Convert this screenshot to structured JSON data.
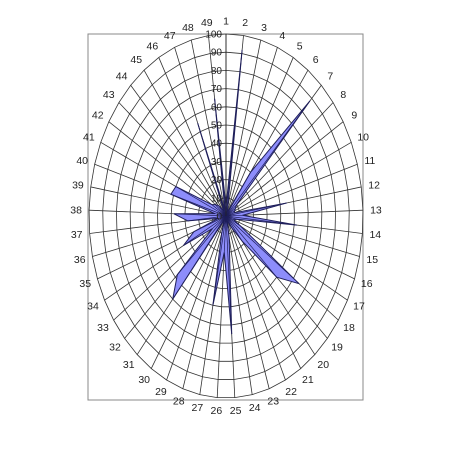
{
  "chart_data": {
    "type": "radar-area",
    "title": "",
    "categories": [
      "1",
      "2",
      "3",
      "4",
      "5",
      "6",
      "7",
      "8",
      "9",
      "10",
      "11",
      "12",
      "13",
      "14",
      "15",
      "16",
      "17",
      "18",
      "19",
      "20",
      "21",
      "22",
      "23",
      "24",
      "25",
      "26",
      "27",
      "28",
      "29",
      "30",
      "31",
      "32",
      "33",
      "34",
      "35",
      "36",
      "37",
      "38",
      "39",
      "40",
      "41",
      "42",
      "43",
      "44",
      "45",
      "46",
      "47",
      "48",
      "49"
    ],
    "ring_labels": [
      "0",
      "10",
      "20",
      "30",
      "40",
      "50",
      "60",
      "70",
      "80",
      "90",
      "100"
    ],
    "rlim": [
      0,
      100
    ],
    "grid": true,
    "legend": "none",
    "series": [
      {
        "fill": "#8d8dfb",
        "stroke": "#1f1f5a",
        "values": [
          5,
          92,
          5,
          3,
          3,
          30,
          88,
          10,
          8,
          7,
          6,
          45,
          12,
          52,
          8,
          6,
          12,
          65,
          50,
          18,
          8,
          4,
          3,
          12,
          65,
          20,
          50,
          10,
          4,
          3,
          60,
          48,
          12,
          35,
          25,
          6,
          28,
          38,
          8,
          42,
          40,
          12,
          10,
          8,
          5,
          3,
          55,
          3,
          65
        ]
      }
    ]
  }
}
